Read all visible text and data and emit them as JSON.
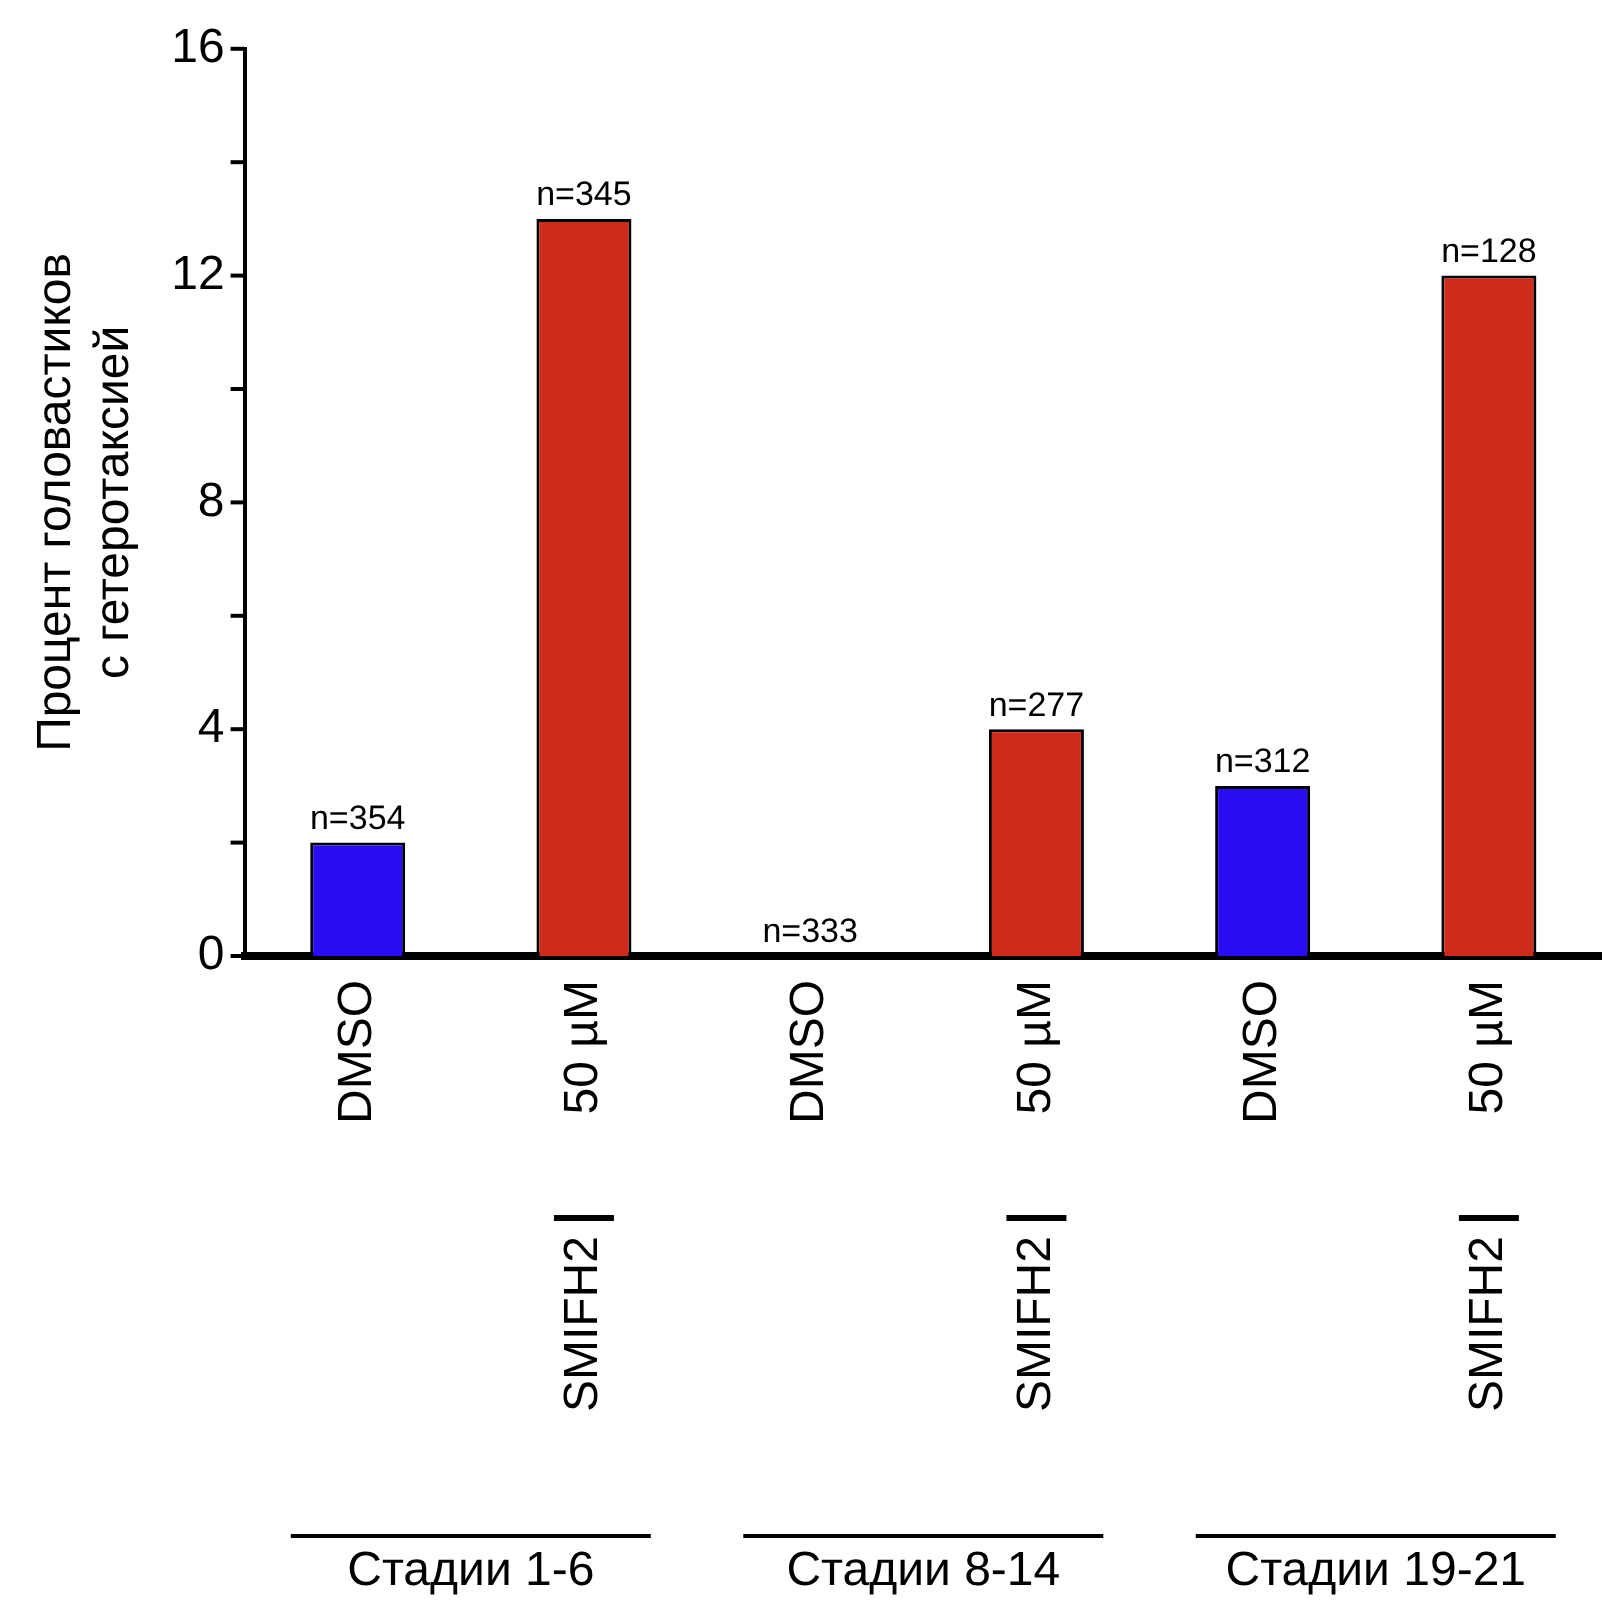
{
  "chart_data": {
    "type": "bar",
    "ylabel": "Процент головастиков\nс гетеротаксией",
    "categories": [
      "DMSO",
      "50 µM",
      "DMSO",
      "50 µM",
      "DMSO",
      "50 µM"
    ],
    "values": [
      2,
      13,
      0,
      4,
      3,
      12
    ],
    "colors": [
      "#2a0cf5",
      "#d02a1c",
      "#2a0cf5",
      "#d02a1c",
      "#2a0cf5",
      "#d02a1c"
    ],
    "ylim": [
      0,
      16
    ],
    "yticks": [
      0,
      {
        "value": 2,
        "label": null
      },
      4,
      {
        "value": 6,
        "label": null
      },
      8,
      {
        "value": 10,
        "label": null
      },
      12,
      {
        "value": 14,
        "label": null
      },
      16
    ],
    "annotations": [
      {
        "text": "n=354",
        "y": 2
      },
      {
        "text": "n=345",
        "y": 13
      },
      {
        "text": "n=333",
        "y": 0
      },
      {
        "text": "n=277",
        "y": 4
      },
      {
        "text": "n=312",
        "y": 3
      },
      {
        "text": "n=128",
        "y": 12
      },
      "SMIFH2",
      "SMIFH2",
      "SMIFH2",
      "Стадии 1-6",
      "Стадии 8-14",
      "Стадии 19-21"
    ],
    "grid": false,
    "legend": false
  }
}
